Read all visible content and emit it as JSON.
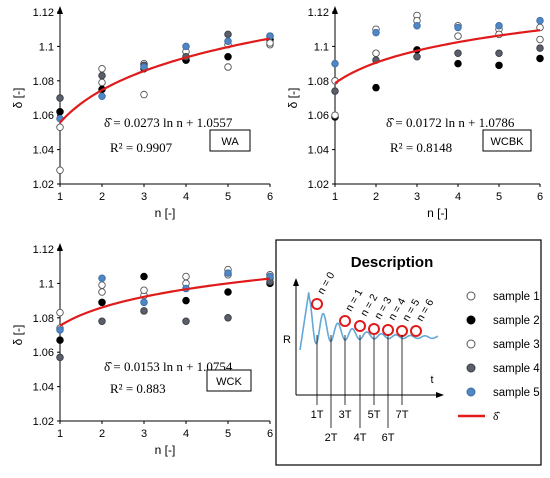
{
  "chart_data": [
    {
      "type": "scatter",
      "panel_label": "WA",
      "xlabel": "n [-]",
      "ylabel": "δ [-]",
      "xlim": [
        1,
        6
      ],
      "ylim": [
        1.02,
        1.12
      ],
      "xticks": [
        1,
        2,
        3,
        4,
        5,
        6
      ],
      "yticks": [
        1.02,
        1.04,
        1.06,
        1.08,
        1.1,
        1.12
      ],
      "equation": "δ̂ = 0.0273 ln n + 1.0557",
      "r2": "R² = 0.9907",
      "fit": {
        "a": 0.0273,
        "b": 1.0557
      },
      "series": [
        {
          "name": "sample 1",
          "x": [
            1,
            2,
            3,
            4,
            5,
            6
          ],
          "y": [
            1.028,
            1.079,
            1.072,
            1.092,
            1.088,
            1.101
          ]
        },
        {
          "name": "sample 2",
          "x": [
            1,
            2,
            3,
            4,
            5,
            6
          ],
          "y": [
            1.062,
            1.075,
            1.087,
            1.092,
            1.094,
            1.104
          ]
        },
        {
          "name": "sample 3",
          "x": [
            1,
            2,
            3,
            4,
            5,
            6
          ],
          "y": [
            1.053,
            1.087,
            1.09,
            1.097,
            1.101,
            1.102
          ]
        },
        {
          "name": "sample 4",
          "x": [
            1,
            2,
            3,
            4,
            5,
            6
          ],
          "y": [
            1.07,
            1.083,
            1.089,
            1.094,
            1.107,
            1.106
          ]
        },
        {
          "name": "sample 5",
          "x": [
            1,
            2,
            3,
            4,
            5,
            6
          ],
          "y": [
            1.058,
            1.071,
            1.088,
            1.1,
            1.103,
            1.106
          ]
        }
      ]
    },
    {
      "type": "scatter",
      "panel_label": "WCBK",
      "xlabel": "n [-]",
      "ylabel": "δ [-]",
      "xlim": [
        1,
        6
      ],
      "ylim": [
        1.02,
        1.12
      ],
      "xticks": [
        1,
        2,
        3,
        4,
        5,
        6
      ],
      "yticks": [
        1.02,
        1.04,
        1.06,
        1.08,
        1.1,
        1.12
      ],
      "equation": "δ̂ = 0.0172 ln n + 1.0786",
      "r2": "R² = 0.8148",
      "fit": {
        "a": 0.0172,
        "b": 1.0786
      },
      "series": [
        {
          "name": "sample 1",
          "x": [
            1,
            2,
            3,
            4,
            5,
            6
          ],
          "y": [
            1.08,
            1.11,
            1.118,
            1.112,
            1.11,
            1.104
          ]
        },
        {
          "name": "sample 2",
          "x": [
            1,
            2,
            3,
            4,
            5,
            6
          ],
          "y": [
            1.059,
            1.076,
            1.098,
            1.09,
            1.089,
            1.093
          ]
        },
        {
          "name": "sample 3",
          "x": [
            1,
            2,
            3,
            4,
            5,
            6
          ],
          "y": [
            1.06,
            1.096,
            1.115,
            1.106,
            1.107,
            1.111
          ]
        },
        {
          "name": "sample 4",
          "x": [
            1,
            2,
            3,
            4,
            5,
            6
          ],
          "y": [
            1.074,
            1.092,
            1.094,
            1.096,
            1.096,
            1.099
          ]
        },
        {
          "name": "sample 5",
          "x": [
            1,
            2,
            3,
            4,
            5,
            6
          ],
          "y": [
            1.09,
            1.108,
            1.112,
            1.111,
            1.112,
            1.115
          ]
        }
      ]
    },
    {
      "type": "scatter",
      "panel_label": "WCK",
      "xlabel": "n [-]",
      "ylabel": "δ [-]",
      "xlim": [
        1,
        6
      ],
      "ylim": [
        1.02,
        1.12
      ],
      "xticks": [
        1,
        2,
        3,
        4,
        5,
        6
      ],
      "yticks": [
        1.02,
        1.04,
        1.06,
        1.08,
        1.1,
        1.12
      ],
      "equation": "δ̂ = 0.0153 ln n + 1.0754",
      "r2": "R² = 0.883",
      "fit": {
        "a": 0.0153,
        "b": 1.0754
      },
      "series": [
        {
          "name": "sample 1",
          "x": [
            1,
            2,
            3,
            4,
            5,
            6
          ],
          "y": [
            1.083,
            1.095,
            1.093,
            1.1,
            1.105,
            1.103
          ]
        },
        {
          "name": "sample 2",
          "x": [
            1,
            2,
            3,
            4,
            5,
            6
          ],
          "y": [
            1.067,
            1.089,
            1.104,
            1.09,
            1.095,
            1.1
          ]
        },
        {
          "name": "sample 3",
          "x": [
            1,
            2,
            3,
            4,
            5,
            6
          ],
          "y": [
            1.074,
            1.099,
            1.096,
            1.104,
            1.108,
            1.105
          ]
        },
        {
          "name": "sample 4",
          "x": [
            1,
            2,
            3,
            4,
            5,
            6
          ],
          "y": [
            1.057,
            1.078,
            1.084,
            1.078,
            1.08,
            1.101
          ]
        },
        {
          "name": "sample 5",
          "x": [
            1,
            2,
            3,
            4,
            5,
            6
          ],
          "y": [
            1.073,
            1.103,
            1.089,
            1.097,
            1.106,
            1.104
          ]
        }
      ]
    }
  ],
  "description": {
    "title": "Description",
    "ylabel": "R",
    "xlabel": "t",
    "peak_labels": [
      "n = 0",
      "n = 1",
      "n = 2",
      "n = 3",
      "n = 4",
      "n = 5",
      "n = 6"
    ],
    "period_labels_upper": [
      "1T",
      "3T",
      "5T",
      "7T"
    ],
    "period_labels_lower": [
      "2T",
      "4T",
      "6T"
    ]
  },
  "legend": {
    "items": [
      {
        "label": "sample 1",
        "marker": "open-circle"
      },
      {
        "label": "sample 2",
        "marker": "black-circle"
      },
      {
        "label": "sample 3",
        "marker": "open-circle"
      },
      {
        "label": "sample 4",
        "marker": "gray-circle"
      },
      {
        "label": "sample 5",
        "marker": "blue-circle"
      },
      {
        "label": "δ̂",
        "marker": "red-line"
      }
    ]
  },
  "colors": {
    "sample 1": "#ffffff",
    "sample 2": "#000000",
    "sample 3": "#ffffff",
    "sample 4": "#5a5f6b",
    "sample 5": "#4f86c6",
    "fit": "#e01b1b",
    "wave": "#62a8d8",
    "peak_circle": "#e01b1b"
  }
}
